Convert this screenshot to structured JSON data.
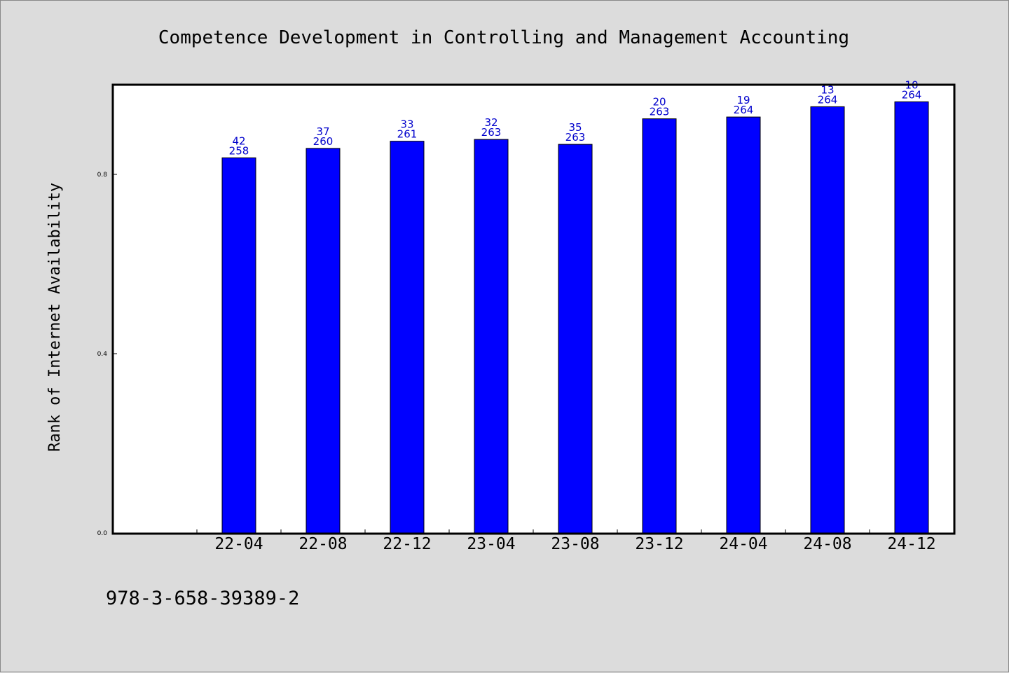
{
  "chart_data": {
    "type": "bar",
    "title": "Competence Development in Controlling and Management Accounting",
    "xlabel": "",
    "ylabel": "Rank of Internet Availability",
    "categories": [
      "22-04",
      "22-08",
      "22-12",
      "23-04",
      "23-08",
      "23-12",
      "24-04",
      "24-08",
      "24-12"
    ],
    "values": [
      0.837,
      0.858,
      0.874,
      0.878,
      0.867,
      0.924,
      0.928,
      0.951,
      0.962
    ],
    "rank_labels": [
      "42",
      "37",
      "33",
      "32",
      "35",
      "20",
      "19",
      "13",
      "10"
    ],
    "total_labels": [
      "258",
      "260",
      "261",
      "263",
      "263",
      "263",
      "264",
      "264",
      "264"
    ],
    "yticks": [
      0.0,
      0.4,
      0.8
    ],
    "ytick_labels": [
      "0.0",
      "0.4",
      "0.8"
    ],
    "ylim": [
      0.0,
      1.0
    ],
    "grid": false,
    "legend": "none",
    "colors": {
      "bar_fill": "#0000ff",
      "bar_stroke": "#000000",
      "data_label": "#0000cc",
      "plot_background": "#ffffff",
      "page_background": "#dcdcdc"
    }
  },
  "footer": {
    "isbn": "978-3-658-39389-2"
  }
}
